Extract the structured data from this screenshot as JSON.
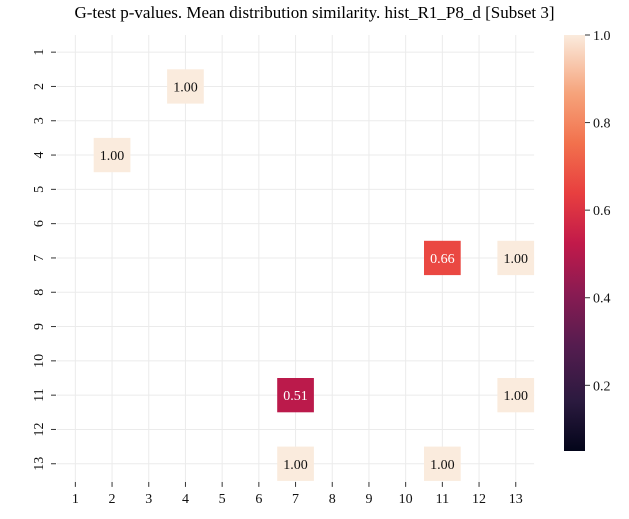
{
  "chart_data": {
    "type": "heatmap",
    "title": "G-test p-values. Mean distribution similarity. hist_R1_P8_d [Subset 3]",
    "x_categories": [
      "1",
      "2",
      "3",
      "4",
      "5",
      "6",
      "7",
      "8",
      "9",
      "10",
      "11",
      "12",
      "13"
    ],
    "y_categories": [
      "1",
      "2",
      "3",
      "4",
      "5",
      "6",
      "7",
      "8",
      "9",
      "10",
      "11",
      "12",
      "13"
    ],
    "cells": [
      {
        "x": "4",
        "y": "2",
        "value": 1.0,
        "label": "1.00"
      },
      {
        "x": "2",
        "y": "4",
        "value": 1.0,
        "label": "1.00"
      },
      {
        "x": "11",
        "y": "7",
        "value": 0.66,
        "label": "0.66"
      },
      {
        "x": "13",
        "y": "7",
        "value": 1.0,
        "label": "1.00"
      },
      {
        "x": "7",
        "y": "11",
        "value": 0.51,
        "label": "0.51"
      },
      {
        "x": "13",
        "y": "11",
        "value": 1.0,
        "label": "1.00"
      },
      {
        "x": "7",
        "y": "13",
        "value": 1.0,
        "label": "1.00"
      },
      {
        "x": "11",
        "y": "13",
        "value": 1.0,
        "label": "1.00"
      }
    ],
    "colorbar": {
      "vmin": 0.05,
      "vmax": 1.0,
      "ticks": [
        "0.2",
        "0.4",
        "0.6",
        "0.8",
        "1.0"
      ],
      "tick_values": [
        0.2,
        0.4,
        0.6,
        0.8,
        1.0
      ],
      "colormap": "rocket"
    },
    "grid": true
  }
}
